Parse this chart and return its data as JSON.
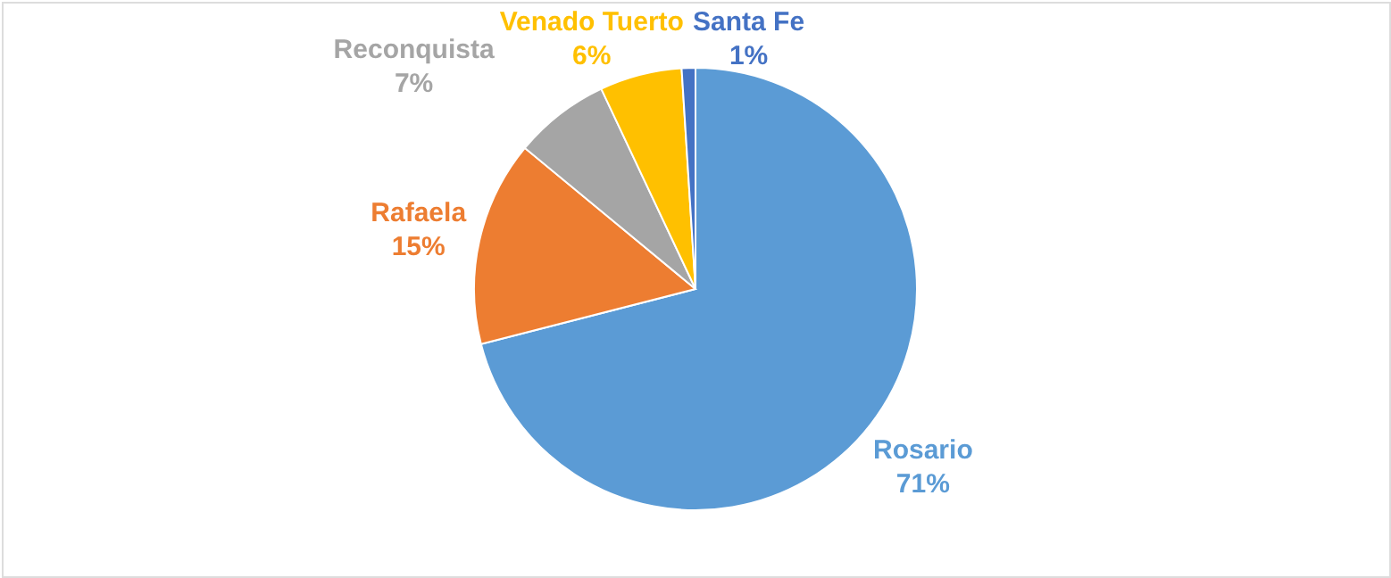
{
  "chart_data": {
    "type": "pie",
    "categories": [
      "Rosario",
      "Rafaela",
      "Reconquista",
      "Venado Tuerto",
      "Santa Fe"
    ],
    "values": [
      71,
      15,
      7,
      6,
      1
    ],
    "value_labels": [
      "71%",
      "15%",
      "7%",
      "6%",
      "1%"
    ],
    "colors": [
      "#5b9bd5",
      "#ed7d31",
      "#a5a5a5",
      "#ffc000",
      "#4472c4"
    ]
  }
}
